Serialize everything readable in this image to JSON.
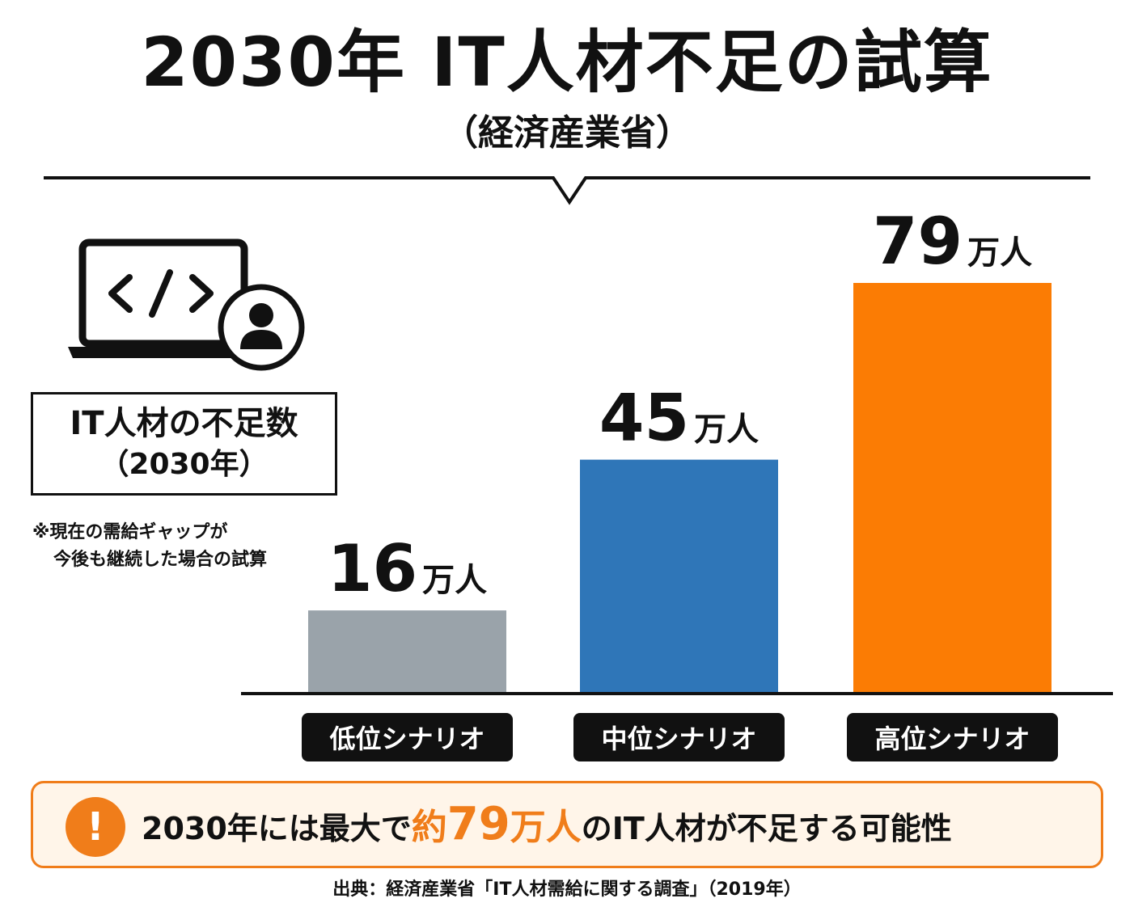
{
  "header": {
    "title": "2030年 IT人材不足の試算",
    "subtitle": "（経済産業省）"
  },
  "icons": {
    "laptop": "laptop-code-icon",
    "user": "user-icon",
    "alert": "exclamation-icon"
  },
  "sidebar": {
    "label_line1": "IT人材の不足数",
    "label_line2": "（2030年）",
    "note_line1": "※現在の需給ギャップが",
    "note_line2": "今後も継続した場合の試算"
  },
  "chart_data": {
    "type": "bar",
    "categories": [
      "低位シナリオ",
      "中位シナリオ",
      "高位シナリオ"
    ],
    "values": [
      16,
      45,
      79
    ],
    "unit": "万人",
    "value_labels": [
      "16",
      "45",
      "79"
    ],
    "colors": [
      "#9aa3aa",
      "#2f76b8",
      "#fb7c04"
    ],
    "ylim": [
      0,
      79
    ]
  },
  "callout": {
    "icon_glyph": "!",
    "text_before": "2030年には最大で",
    "highlight_prefix": "約",
    "highlight_number": "79",
    "highlight_unit": "万人",
    "text_after": "のIT人材が不足する可能性"
  },
  "source": "出典：経済産業省「IT人材需給に関する調査」（2019年）"
}
